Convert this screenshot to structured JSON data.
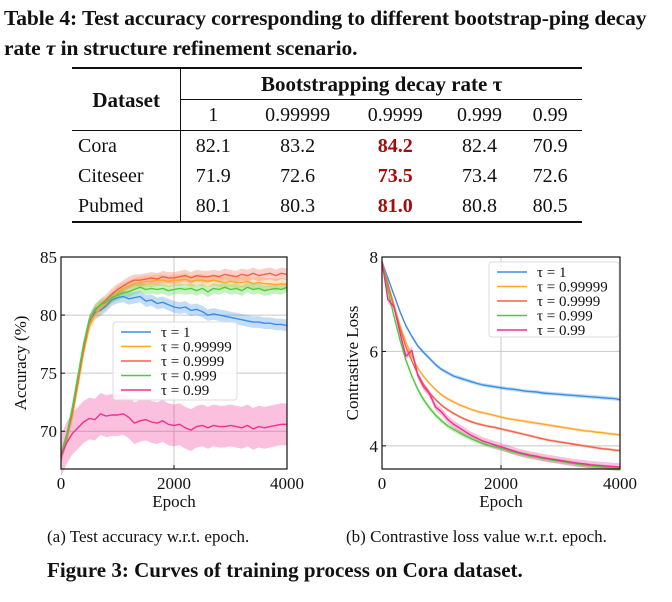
{
  "table": {
    "caption_pre": "Table 4: Test accuracy corresponding to different bootstrap-ping decay rate ",
    "caption_tau": "τ",
    "caption_post": " in structure refinement scenario.",
    "dataset_header": "Dataset",
    "group_header": "Bootstrapping decay rate τ",
    "columns": [
      "1",
      "0.99999",
      "0.9999",
      "0.999",
      "0.99"
    ],
    "best_column_index": 2,
    "rows": [
      {
        "dataset": "Cora",
        "values": [
          "82.1",
          "83.2",
          "84.2",
          "82.4",
          "70.9"
        ]
      },
      {
        "dataset": "Citeseer",
        "values": [
          "71.9",
          "72.6",
          "73.5",
          "73.4",
          "72.6"
        ]
      },
      {
        "dataset": "Pubmed",
        "values": [
          "80.1",
          "80.3",
          "81.0",
          "80.8",
          "80.5"
        ]
      }
    ],
    "best_color": "#a50d0d"
  },
  "figure": {
    "subcaption_a": "(a)  Test accuracy w.r.t. epoch.",
    "subcaption_b": "(b)  Contrastive loss value w.r.t. epoch.",
    "caption": "Figure 3: Curves of training process on Cora dataset."
  },
  "chart_data": [
    {
      "type": "line",
      "title": "",
      "xlabel": "Epoch",
      "ylabel": "Accuracy (%)",
      "xlim": [
        0,
        4000
      ],
      "ylim": [
        66.75,
        85
      ],
      "xticks": [
        0,
        2000,
        4000
      ],
      "yticks": [
        70,
        75,
        80,
        85
      ],
      "grid": true,
      "legend": "center",
      "x": [
        0,
        100,
        200,
        300,
        400,
        500,
        600,
        700,
        800,
        900,
        1000,
        1100,
        1200,
        1300,
        1400,
        1500,
        1600,
        1700,
        1800,
        1900,
        2000,
        2100,
        2200,
        2300,
        2400,
        2500,
        2600,
        2700,
        2800,
        2900,
        3000,
        3100,
        3200,
        3300,
        3400,
        3500,
        3600,
        3700,
        3800,
        3900,
        4000
      ],
      "series": [
        {
          "name": "τ = 1",
          "color": "#3a8ee6",
          "band": 0.5,
          "values": [
            67.8,
            69.5,
            71.8,
            74.5,
            77.2,
            79.5,
            80.2,
            80.4,
            80.8,
            81.3,
            81.5,
            81.6,
            81.4,
            81.5,
            81.6,
            81.2,
            81.3,
            81.0,
            81.1,
            80.9,
            80.7,
            80.6,
            80.7,
            80.4,
            80.5,
            80.3,
            80.0,
            80.1,
            80.0,
            79.9,
            79.8,
            79.7,
            79.6,
            79.5,
            79.4,
            79.4,
            79.3,
            79.3,
            79.2,
            79.2,
            79.1
          ]
        },
        {
          "name": "τ = 0.99999",
          "color": "#ffa629",
          "band": 0.5,
          "values": [
            67.8,
            69.3,
            71.3,
            74.0,
            76.8,
            79.0,
            80.0,
            80.6,
            81.0,
            81.5,
            82.0,
            82.3,
            82.5,
            82.7,
            82.8,
            82.9,
            82.9,
            83.0,
            83.0,
            82.9,
            83.0,
            83.0,
            83.1,
            82.9,
            83.0,
            83.0,
            82.9,
            83.0,
            82.9,
            82.8,
            82.9,
            82.8,
            82.8,
            82.9,
            82.7,
            82.8,
            82.7,
            82.7,
            82.6,
            82.7,
            82.6
          ]
        },
        {
          "name": "τ = 0.9999",
          "color": "#f3624a",
          "band": 0.5,
          "values": [
            67.8,
            69.4,
            71.6,
            74.4,
            77.1,
            79.4,
            80.4,
            80.9,
            81.3,
            81.8,
            82.2,
            82.5,
            82.8,
            83.0,
            83.0,
            83.1,
            83.2,
            83.1,
            83.3,
            83.2,
            83.2,
            83.3,
            83.4,
            83.2,
            83.4,
            83.3,
            83.3,
            83.4,
            83.3,
            83.5,
            83.4,
            83.3,
            83.5,
            83.4,
            83.6,
            83.4,
            83.5,
            83.6,
            83.4,
            83.6,
            83.5
          ]
        },
        {
          "name": "τ = 0.999",
          "color": "#4ccd3c",
          "band": 0.45,
          "values": [
            67.8,
            69.6,
            72.0,
            74.8,
            77.5,
            79.6,
            80.5,
            80.9,
            81.1,
            81.5,
            81.7,
            81.9,
            82.0,
            82.2,
            82.4,
            82.2,
            82.3,
            82.2,
            82.3,
            82.1,
            82.2,
            82.3,
            82.2,
            82.3,
            82.1,
            82.3,
            82.0,
            82.3,
            82.2,
            82.4,
            82.2,
            82.3,
            82.1,
            82.4,
            82.2,
            82.3,
            82.1,
            82.2,
            82.3,
            82.2,
            82.4
          ]
        },
        {
          "name": "τ = 0.99",
          "color": "#f0308f",
          "band": 1.8,
          "values": [
            67.9,
            69.0,
            69.8,
            70.3,
            70.8,
            71.1,
            71.0,
            71.5,
            71.3,
            71.4,
            71.4,
            71.5,
            71.2,
            70.7,
            70.9,
            71.0,
            70.8,
            70.7,
            70.9,
            70.6,
            70.5,
            70.6,
            70.3,
            70.1,
            70.4,
            70.5,
            70.3,
            70.5,
            70.4,
            70.4,
            70.5,
            70.4,
            70.3,
            70.5,
            70.2,
            70.4,
            70.3,
            70.4,
            70.5,
            70.6,
            70.6
          ]
        }
      ]
    },
    {
      "type": "line",
      "title": "",
      "xlabel": "Epoch",
      "ylabel": "Contrastive Loss",
      "xlim": [
        0,
        4000
      ],
      "ylim": [
        3.51,
        8
      ],
      "xticks": [
        0,
        2000,
        4000
      ],
      "yticks": [
        4,
        6,
        8
      ],
      "grid": true,
      "legend": "top-right",
      "x": [
        0,
        100,
        200,
        300,
        400,
        500,
        600,
        700,
        800,
        900,
        1000,
        1100,
        1200,
        1300,
        1400,
        1500,
        1600,
        1700,
        1800,
        1900,
        2000,
        2100,
        2200,
        2300,
        2400,
        2500,
        2600,
        2700,
        2800,
        2900,
        3000,
        3100,
        3200,
        3300,
        3400,
        3500,
        3600,
        3700,
        3800,
        3900,
        4000
      ],
      "series": [
        {
          "name": "τ = 1",
          "color": "#3a8ee6",
          "band": 0.04,
          "values": [
            7.9,
            7.55,
            7.2,
            6.85,
            6.55,
            6.32,
            6.12,
            5.98,
            5.85,
            5.72,
            5.62,
            5.55,
            5.48,
            5.44,
            5.4,
            5.36,
            5.32,
            5.29,
            5.27,
            5.25,
            5.23,
            5.21,
            5.2,
            5.18,
            5.16,
            5.15,
            5.14,
            5.12,
            5.11,
            5.1,
            5.09,
            5.08,
            5.07,
            5.06,
            5.05,
            5.04,
            5.03,
            5.02,
            5.01,
            5.0,
            4.98
          ]
        },
        {
          "name": "τ = 0.99999",
          "color": "#ffa629",
          "band": 0.03,
          "values": [
            7.9,
            7.45,
            7.0,
            6.55,
            6.2,
            5.9,
            5.65,
            5.47,
            5.32,
            5.19,
            5.08,
            5.0,
            4.93,
            4.87,
            4.82,
            4.77,
            4.73,
            4.7,
            4.67,
            4.64,
            4.61,
            4.58,
            4.56,
            4.54,
            4.52,
            4.5,
            4.48,
            4.46,
            4.44,
            4.42,
            4.4,
            4.38,
            4.36,
            4.34,
            4.32,
            4.31,
            4.29,
            4.28,
            4.26,
            4.25,
            4.23
          ]
        },
        {
          "name": "τ = 0.9999",
          "color": "#f3624a",
          "band": 0.03,
          "values": [
            7.9,
            7.4,
            6.95,
            6.5,
            6.1,
            5.8,
            5.52,
            5.3,
            5.12,
            4.98,
            4.86,
            4.77,
            4.69,
            4.62,
            4.56,
            4.51,
            4.47,
            4.44,
            4.41,
            4.39,
            4.36,
            4.33,
            4.3,
            4.27,
            4.24,
            4.21,
            4.18,
            4.15,
            4.12,
            4.1,
            4.08,
            4.06,
            4.04,
            4.02,
            4.0,
            3.98,
            3.96,
            3.94,
            3.93,
            3.91,
            3.9
          ]
        },
        {
          "name": "τ = 0.999",
          "color": "#4ccd3c",
          "band": 0.05,
          "values": [
            7.9,
            7.3,
            6.75,
            6.25,
            5.82,
            5.48,
            5.2,
            4.98,
            4.8,
            4.65,
            4.53,
            4.43,
            4.35,
            4.28,
            4.21,
            4.15,
            4.1,
            4.05,
            4.01,
            3.98,
            3.95,
            3.91,
            3.87,
            3.84,
            3.81,
            3.78,
            3.76,
            3.73,
            3.71,
            3.69,
            3.67,
            3.65,
            3.63,
            3.61,
            3.59,
            3.58,
            3.56,
            3.55,
            3.54,
            3.53,
            3.52
          ]
        },
        {
          "name": "τ = 0.99",
          "color": "#f0308f",
          "band": 0.08,
          "values": [
            7.9,
            7.1,
            6.95,
            6.4,
            5.9,
            6.02,
            5.5,
            5.25,
            5.1,
            4.82,
            4.72,
            4.57,
            4.46,
            4.38,
            4.3,
            4.22,
            4.16,
            4.1,
            4.06,
            4.02,
            3.98,
            3.94,
            3.9,
            3.86,
            3.83,
            3.8,
            3.78,
            3.75,
            3.73,
            3.71,
            3.69,
            3.67,
            3.65,
            3.63,
            3.62,
            3.6,
            3.59,
            3.58,
            3.57,
            3.56,
            3.55
          ]
        }
      ]
    }
  ]
}
